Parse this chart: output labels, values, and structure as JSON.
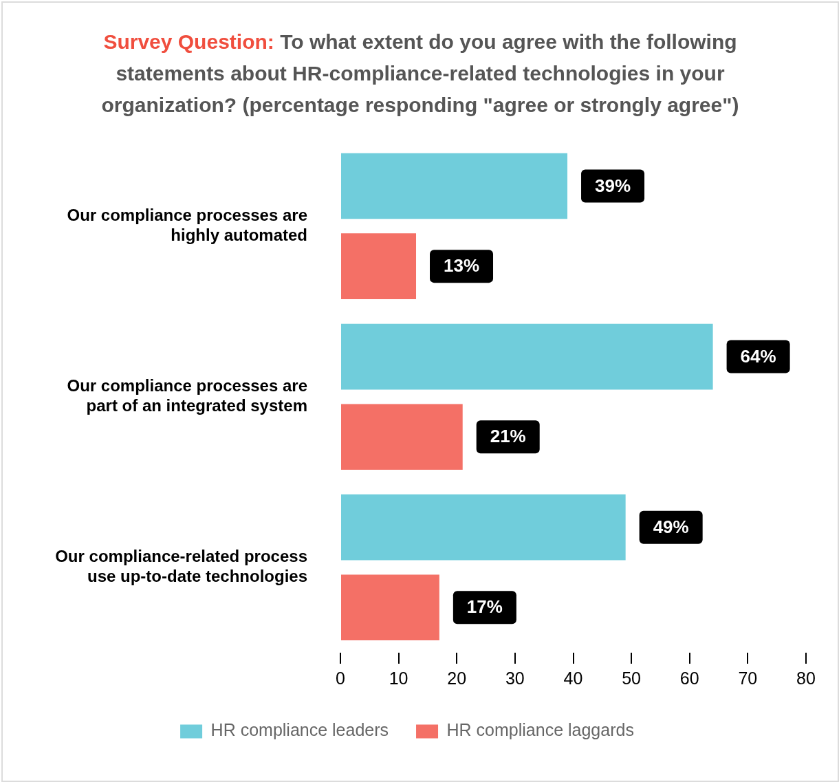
{
  "chart_data": {
    "type": "bar",
    "orientation": "horizontal",
    "title": "Survey Question:",
    "subtitle": "To what extent do you agree with the following statements about  HR-compliance-related technologies in your organization? (percentage responding \"agree or strongly agree\")",
    "categories": [
      "Our compliance processes are highly automated",
      "Our compliance processes are part of an integrated system",
      "Our compliance-related process use up-to-date technologies"
    ],
    "series": [
      {
        "name": "HR compliance leaders",
        "color": "#70cddb",
        "values": [
          39,
          64,
          49
        ],
        "value_labels": [
          "39%",
          "64%",
          "49%"
        ]
      },
      {
        "name": "HR compliance laggards",
        "color": "#f47066",
        "values": [
          13,
          21,
          17
        ],
        "value_labels": [
          "13%",
          "21%",
          "17%"
        ]
      }
    ],
    "xlim": [
      0,
      80
    ],
    "xticks": [
      0,
      10,
      20,
      30,
      40,
      50,
      60,
      70,
      80
    ],
    "grid": false,
    "legend": "bottom"
  }
}
